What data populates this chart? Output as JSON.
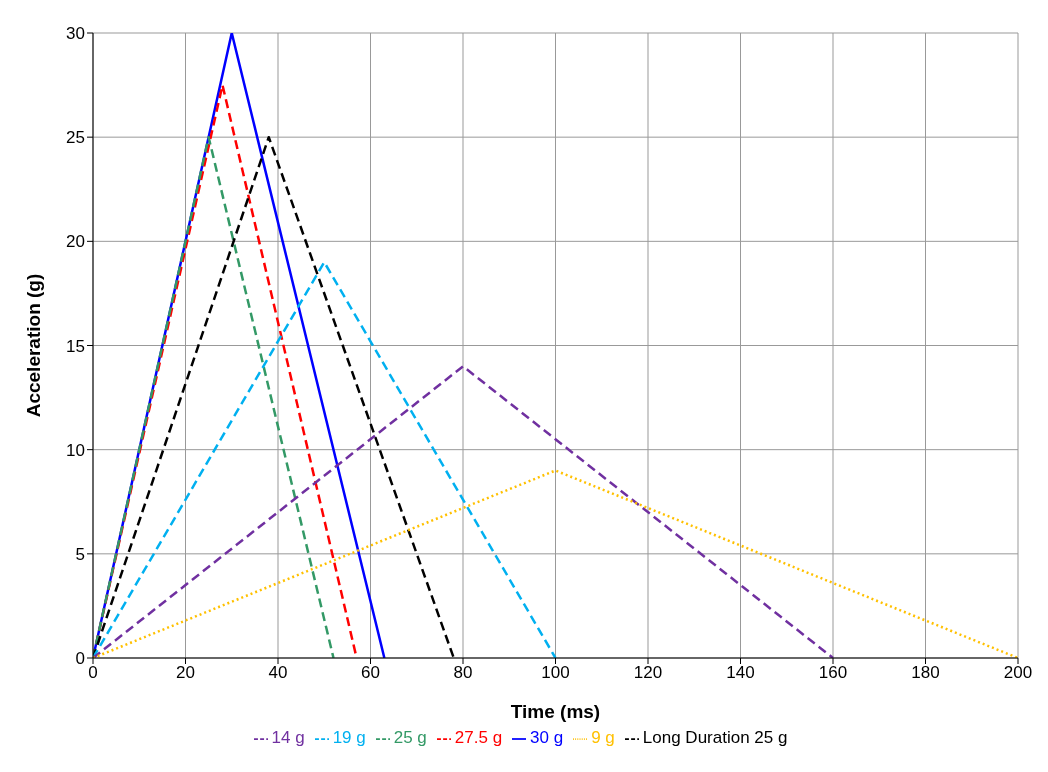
{
  "chart_data": {
    "type": "line",
    "xlabel": "Time (ms)",
    "ylabel": "Acceleration (g)",
    "xlim": [
      0,
      200
    ],
    "xticks": [
      0,
      20,
      40,
      60,
      80,
      100,
      120,
      140,
      160,
      180,
      200
    ],
    "ylim": [
      0,
      30
    ],
    "yticks": [
      0,
      5,
      10,
      15,
      20,
      25,
      30
    ],
    "grid": true,
    "legend": "bottom",
    "marker": "none",
    "series": [
      {
        "name": "30 g",
        "color": "#0000ff",
        "line_style": "solid",
        "x": [
          0,
          30,
          63
        ],
        "values": [
          0,
          30,
          0
        ]
      },
      {
        "name": "27.5 g",
        "color": "#ff0000",
        "line_style": "dashed",
        "x": [
          0,
          28,
          57
        ],
        "values": [
          0,
          27.5,
          0
        ]
      },
      {
        "name": "25 g",
        "color": "#339966",
        "line_style": "dashed",
        "x": [
          0,
          25,
          52
        ],
        "values": [
          0,
          25,
          0
        ]
      },
      {
        "name": "Long Duration 25 g",
        "color": "#000000",
        "line_style": "dashed",
        "x": [
          0,
          38,
          78
        ],
        "values": [
          0,
          25,
          0
        ]
      },
      {
        "name": "19 g",
        "color": "#00b0f0",
        "line_style": "dashed",
        "x": [
          0,
          50,
          100
        ],
        "values": [
          0,
          19,
          0
        ]
      },
      {
        "name": "14 g",
        "color": "#7030a0",
        "line_style": "dashed",
        "x": [
          0,
          80,
          160
        ],
        "values": [
          0,
          14,
          0
        ]
      },
      {
        "name": "9 g",
        "color": "#ffc000",
        "line_style": "dotted",
        "x": [
          0,
          100,
          200
        ],
        "values": [
          0,
          9,
          0
        ]
      }
    ]
  }
}
